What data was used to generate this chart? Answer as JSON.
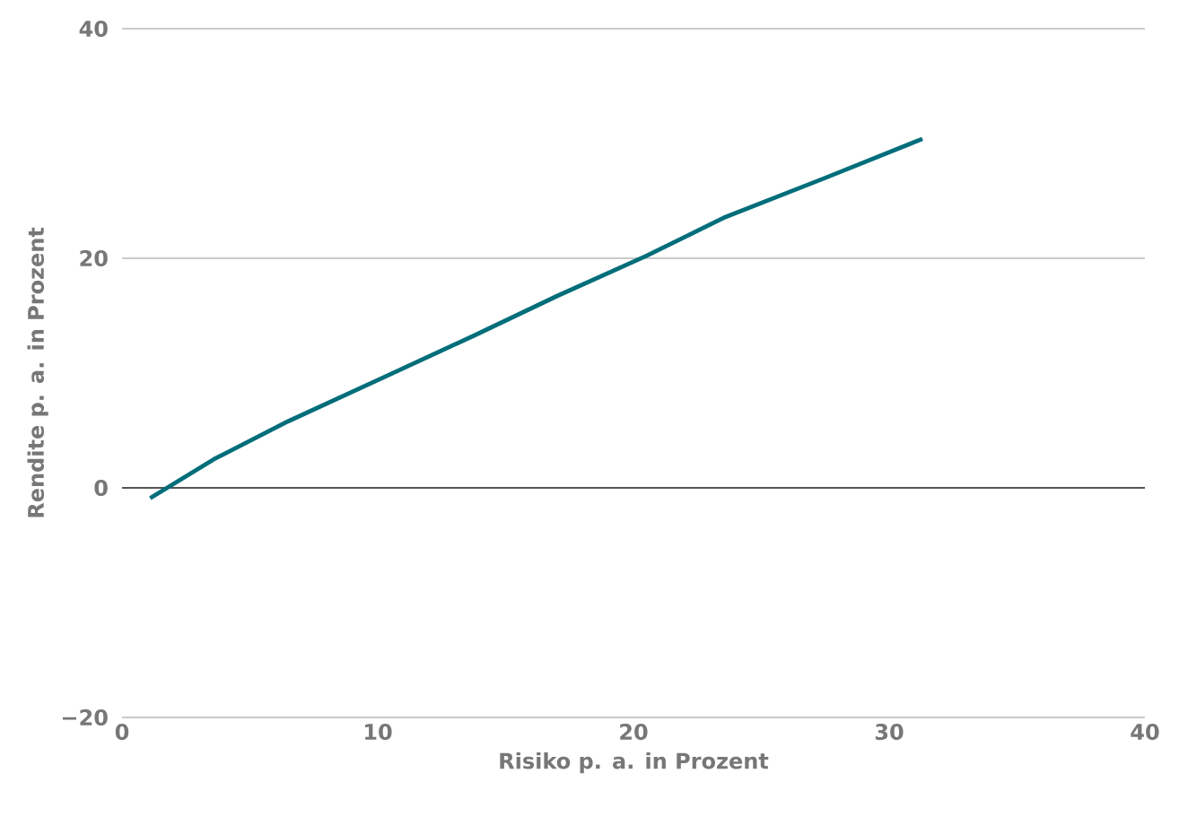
{
  "chart_data": {
    "type": "line",
    "xlabel": "Risiko p. a. in Prozent",
    "ylabel": "Rendite p. a. in Prozent",
    "x": [
      1.1,
      3.6,
      6.5,
      10.3,
      13.8,
      17.0,
      20.5,
      23.6,
      27.5,
      31.3
    ],
    "series": [
      {
        "color": "#006e7a",
        "values": [
          -0.9,
          2.5,
          5.8,
          9.7,
          13.3,
          16.7,
          20.2,
          23.6,
          27.0,
          30.4
        ]
      }
    ],
    "xlim": [
      0,
      40
    ],
    "xticks": [
      0,
      10,
      20,
      30,
      40
    ],
    "ylim": [
      -20,
      40
    ],
    "yticks": [
      {
        "value": -20,
        "label": "−20"
      },
      0,
      20,
      40
    ],
    "grid": "y",
    "marker": "none",
    "line_style": "solid",
    "ref_lines": [
      {
        "axis": "y",
        "value": 0,
        "color": "#555555"
      }
    ]
  }
}
